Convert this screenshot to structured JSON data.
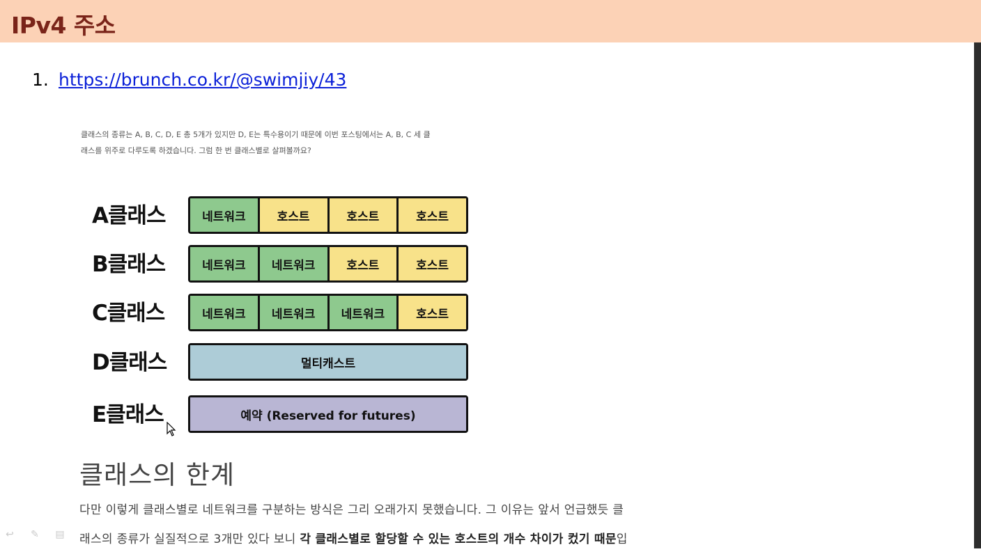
{
  "header": {
    "title": "IPv4 주소"
  },
  "list": {
    "number": "1.",
    "link": "https://brunch.co.kr/@swimjiy/43"
  },
  "intro": {
    "line1": "클래스의 종류는 A, B, C, D, E 총 5개가 있지만 D, E는 특수용이기 때문에 이번 포스팅에서는 A, B, C 세 클",
    "line2": "래스를 위주로 다루도록 하겠습니다. 그럼 한 번 클래스별로 살펴볼까요?"
  },
  "diagram": {
    "rows": [
      {
        "label": "A클래스",
        "blocks": [
          "네트워크",
          "호스트",
          "호스트",
          "호스트"
        ]
      },
      {
        "label": "B클래스",
        "blocks": [
          "네트워크",
          "네트워크",
          "호스트",
          "호스트"
        ]
      },
      {
        "label": "C클래스",
        "blocks": [
          "네트워크",
          "네트워크",
          "네트워크",
          "호스트"
        ]
      },
      {
        "label": "D클래스",
        "full": "멀티캐스트"
      },
      {
        "label": "E클래스",
        "full": "예약 (Reserved for futures)"
      }
    ],
    "colors": {
      "network": "#8ec98e",
      "host": "#f8e28a",
      "multicast": "#adccd7",
      "reserved": "#b9b6d4"
    }
  },
  "section": {
    "heading": "클래스의 한계",
    "line1": "다만 이렇게 클래스별로 네트워크를 구분하는 방식은 그리 오래가지 못했습니다. 그 이유는 앞서 언급했듯 클",
    "line2_plain": "래스의 종류가 실질적으로 3개만 있다 보니 ",
    "line2_bold": "각 클래스별로 할당할 수 있는 호스트의 개수 차이가 컸기 때문",
    "line2_end": "입"
  },
  "toolbar": {
    "icons": [
      "back-arrow-icon",
      "pen-icon",
      "menu-icon"
    ]
  }
}
